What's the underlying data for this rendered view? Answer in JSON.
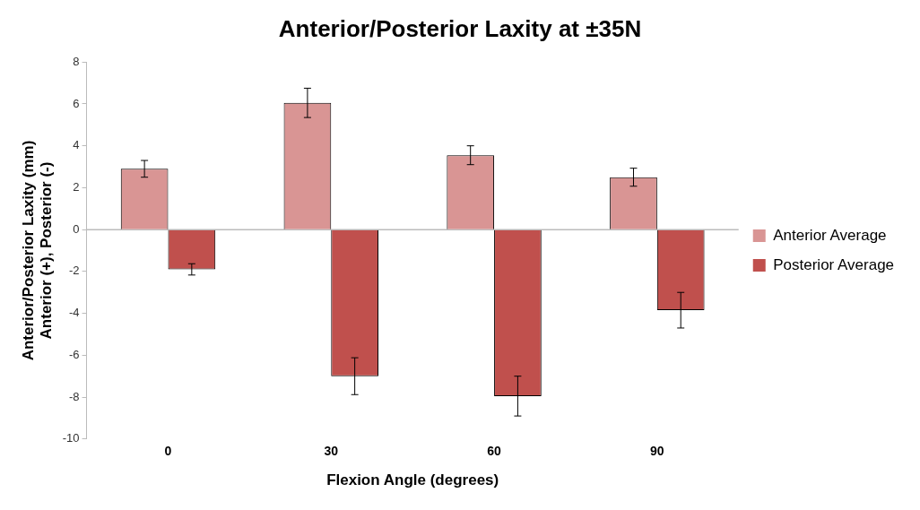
{
  "chart_data": {
    "type": "bar",
    "title": "Anterior/Posterior Laxity at ±35N",
    "xlabel": "Flexion Angle (degrees)",
    "ylabel": "Anterior/Posterior Laxity (mm)\nAnterior (+), Posterior (-)",
    "categories": [
      "0",
      "30",
      "60",
      "90"
    ],
    "series": [
      {
        "name": "Anterior Average",
        "color": "#d99594",
        "values": [
          2.9,
          6.05,
          3.55,
          2.5
        ],
        "errors": [
          0.4,
          0.7,
          0.45,
          0.43
        ]
      },
      {
        "name": "Posterior Average",
        "color": "#c0504d",
        "values": [
          -1.9,
          -7.0,
          -7.95,
          -3.85
        ],
        "errors": [
          0.27,
          0.88,
          0.95,
          0.85
        ]
      }
    ],
    "ylim": [
      -10,
      8
    ],
    "yticks": [
      -10,
      -8,
      -6,
      -4,
      -2,
      0,
      2,
      4,
      6,
      8
    ],
    "grid": false,
    "ref_lines": [
      {
        "axis": "y",
        "value": 0,
        "color": "#bbbbbb"
      }
    ],
    "legend": "right"
  }
}
